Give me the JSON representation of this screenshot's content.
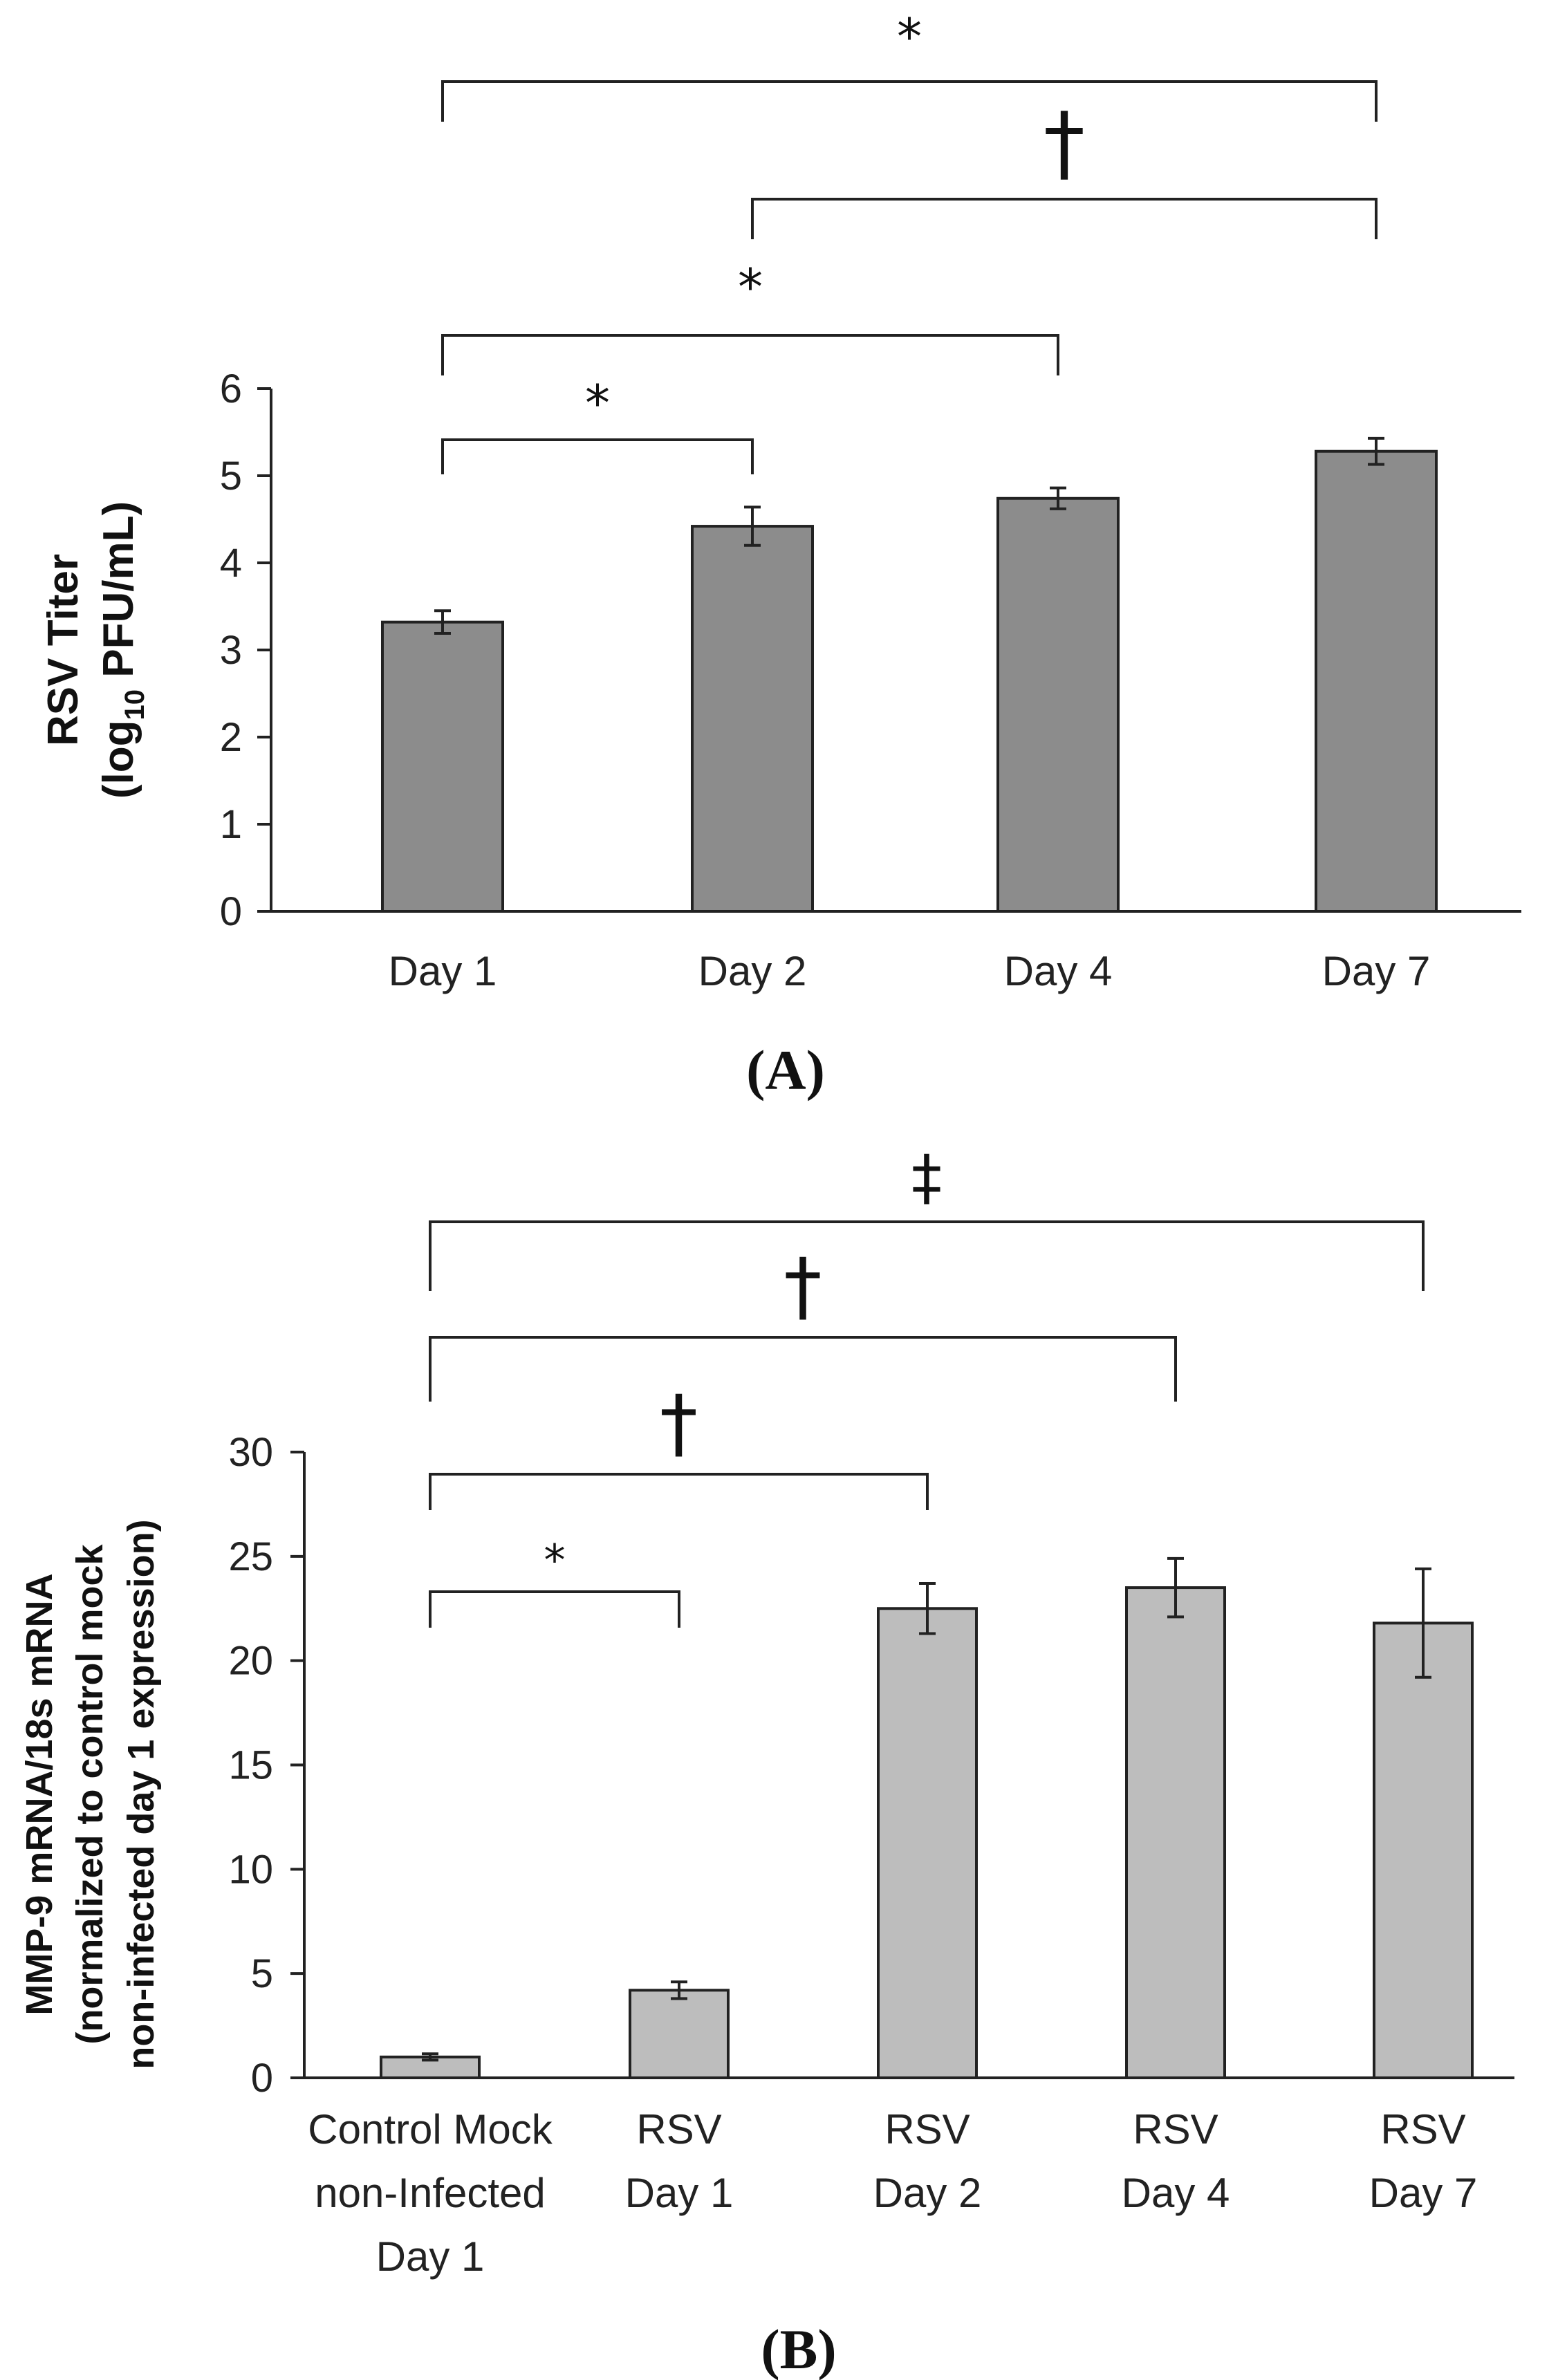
{
  "chart_data": [
    {
      "type": "bar",
      "panel_label": "(A)",
      "title": "",
      "xlabel": "",
      "ylabel_line1": "RSV Titer",
      "ylabel_line2_prefix": "(log",
      "ylabel_line2_sub": "10",
      "ylabel_line2_suffix": " PFU/mL)",
      "ylim": [
        0,
        6
      ],
      "yticks": [
        0,
        1,
        2,
        3,
        4,
        5,
        6
      ],
      "bar_color": "#8c8c8c",
      "categories": [
        [
          "Day 1"
        ],
        [
          "Day 2"
        ],
        [
          "Day 4"
        ],
        [
          "Day 7"
        ]
      ],
      "values": [
        3.32,
        4.42,
        4.74,
        5.28
      ],
      "errors": [
        0.13,
        0.22,
        0.12,
        0.15
      ],
      "significance": [
        {
          "from": 0,
          "to": 3,
          "symbol": "*"
        },
        {
          "from": 1,
          "to": 3,
          "symbol": "†"
        },
        {
          "from": 0,
          "to": 2,
          "symbol": "*"
        },
        {
          "from": 0,
          "to": 1,
          "symbol": "*"
        }
      ]
    },
    {
      "type": "bar",
      "panel_label": "(B)",
      "title": "",
      "xlabel": "",
      "ylabel_lines": [
        "MMP-9 mRNA/18s mRNA",
        "(normalized to control mock",
        "non-infected day 1 expression)"
      ],
      "ylim": [
        0,
        30
      ],
      "yticks": [
        0,
        5,
        10,
        15,
        20,
        25,
        30
      ],
      "bar_color": "#bdbdbd",
      "categories": [
        [
          "Control Mock",
          "non-Infected",
          "Day 1"
        ],
        [
          "RSV",
          "Day 1"
        ],
        [
          "RSV",
          "Day 2"
        ],
        [
          "RSV",
          "Day 4"
        ],
        [
          "RSV",
          "Day 7"
        ]
      ],
      "values": [
        1.0,
        4.2,
        22.5,
        23.5,
        21.8
      ],
      "errors": [
        0.15,
        0.4,
        1.2,
        1.4,
        2.6
      ],
      "significance": [
        {
          "from": 0,
          "to": 4,
          "symbol": "‡"
        },
        {
          "from": 0,
          "to": 3,
          "symbol": "†"
        },
        {
          "from": 0,
          "to": 2,
          "symbol": "†"
        },
        {
          "from": 0,
          "to": 1,
          "symbol": "*"
        }
      ]
    }
  ]
}
